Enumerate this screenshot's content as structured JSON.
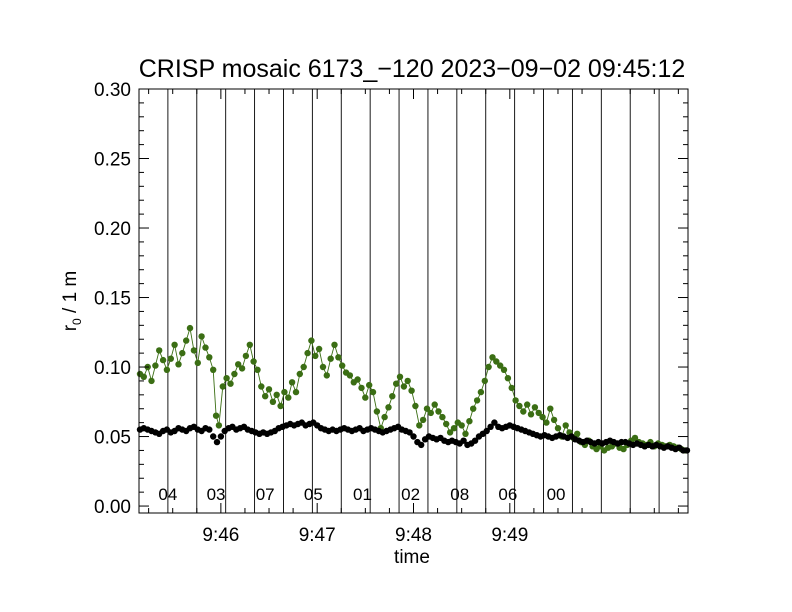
{
  "chart_data": {
    "type": "scatter",
    "title": "CRISP mosaic 6173_−120 2023−09−02 09:45:12",
    "xlabel": "time",
    "ylabel": "r₀ / 1 m",
    "ylabel_main": "r",
    "ylabel_sub": "0",
    "ylabel_rest": " / 1 m",
    "x_unit": "minutes after 09:45:00",
    "xlim": [
      0.15,
      5.85
    ],
    "ylim": [
      -0.005,
      0.3
    ],
    "yticks": [
      0.0,
      0.05,
      0.1,
      0.15,
      0.2,
      0.25,
      0.3
    ],
    "ytick_labels": [
      "0.00",
      "0.05",
      "0.10",
      "0.15",
      "0.20",
      "0.25",
      "0.30"
    ],
    "xticks": [
      1,
      2,
      3,
      4
    ],
    "xtick_labels": [
      "9:46",
      "9:47",
      "9:48",
      "9:49"
    ],
    "segment_boundaries": [
      0.15,
      0.45,
      0.75,
      1.05,
      1.35,
      1.65,
      1.95,
      2.25,
      2.55,
      2.85,
      3.15,
      3.45,
      3.75,
      4.05,
      4.35,
      4.65,
      4.95,
      5.25,
      5.55,
      5.85
    ],
    "segment_labels": [
      {
        "label": "04",
        "x": 0.45
      },
      {
        "label": "03",
        "x": 0.95
      },
      {
        "label": "07",
        "x": 1.46
      },
      {
        "label": "05",
        "x": 1.96
      },
      {
        "label": "01",
        "x": 2.47
      },
      {
        "label": "02",
        "x": 2.97
      },
      {
        "label": "08",
        "x": 3.48
      },
      {
        "label": "06",
        "x": 3.98
      },
      {
        "label": "00",
        "x": 4.48
      }
    ],
    "series": [
      {
        "name": "green",
        "color": "#3b6e14",
        "points": [
          [
            0.16,
            0.095
          ],
          [
            0.2,
            0.093
          ],
          [
            0.24,
            0.1
          ],
          [
            0.28,
            0.09
          ],
          [
            0.32,
            0.101
          ],
          [
            0.36,
            0.112
          ],
          [
            0.4,
            0.105
          ],
          [
            0.44,
            0.098
          ],
          [
            0.48,
            0.106
          ],
          [
            0.52,
            0.116
          ],
          [
            0.56,
            0.102
          ],
          [
            0.6,
            0.11
          ],
          [
            0.64,
            0.119
          ],
          [
            0.68,
            0.128
          ],
          [
            0.72,
            0.112
          ],
          [
            0.76,
            0.103
          ],
          [
            0.8,
            0.122
          ],
          [
            0.84,
            0.114
          ],
          [
            0.88,
            0.107
          ],
          [
            0.92,
            0.098
          ],
          [
            0.95,
            0.065
          ],
          [
            0.98,
            0.058
          ],
          [
            1.02,
            0.086
          ],
          [
            1.06,
            0.092
          ],
          [
            1.1,
            0.088
          ],
          [
            1.14,
            0.095
          ],
          [
            1.18,
            0.102
          ],
          [
            1.22,
            0.099
          ],
          [
            1.26,
            0.108
          ],
          [
            1.3,
            0.116
          ],
          [
            1.34,
            0.104
          ],
          [
            1.38,
            0.098
          ],
          [
            1.42,
            0.086
          ],
          [
            1.46,
            0.079
          ],
          [
            1.5,
            0.084
          ],
          [
            1.54,
            0.075
          ],
          [
            1.58,
            0.08
          ],
          [
            1.62,
            0.072
          ],
          [
            1.66,
            0.082
          ],
          [
            1.7,
            0.078
          ],
          [
            1.74,
            0.089
          ],
          [
            1.78,
            0.082
          ],
          [
            1.82,
            0.095
          ],
          [
            1.86,
            0.1
          ],
          [
            1.9,
            0.11
          ],
          [
            1.94,
            0.119
          ],
          [
            1.98,
            0.108
          ],
          [
            2.02,
            0.113
          ],
          [
            2.06,
            0.1
          ],
          [
            2.1,
            0.094
          ],
          [
            2.14,
            0.106
          ],
          [
            2.18,
            0.116
          ],
          [
            2.22,
            0.107
          ],
          [
            2.26,
            0.101
          ],
          [
            2.3,
            0.096
          ],
          [
            2.34,
            0.094
          ],
          [
            2.38,
            0.089
          ],
          [
            2.42,
            0.091
          ],
          [
            2.46,
            0.085
          ],
          [
            2.5,
            0.078
          ],
          [
            2.54,
            0.087
          ],
          [
            2.58,
            0.082
          ],
          [
            2.62,
            0.068
          ],
          [
            2.66,
            0.056
          ],
          [
            2.7,
            0.064
          ],
          [
            2.74,
            0.071
          ],
          [
            2.78,
            0.079
          ],
          [
            2.82,
            0.088
          ],
          [
            2.86,
            0.093
          ],
          [
            2.9,
            0.086
          ],
          [
            2.94,
            0.09
          ],
          [
            2.98,
            0.083
          ],
          [
            3.02,
            0.072
          ],
          [
            3.06,
            0.058
          ],
          [
            3.1,
            0.062
          ],
          [
            3.14,
            0.07
          ],
          [
            3.18,
            0.067
          ],
          [
            3.22,
            0.073
          ],
          [
            3.26,
            0.068
          ],
          [
            3.3,
            0.064
          ],
          [
            3.34,
            0.059
          ],
          [
            3.38,
            0.053
          ],
          [
            3.42,
            0.056
          ],
          [
            3.46,
            0.06
          ],
          [
            3.5,
            0.058
          ],
          [
            3.54,
            0.052
          ],
          [
            3.58,
            0.061
          ],
          [
            3.62,
            0.07
          ],
          [
            3.66,
            0.076
          ],
          [
            3.7,
            0.082
          ],
          [
            3.74,
            0.09
          ],
          [
            3.78,
            0.1
          ],
          [
            3.82,
            0.107
          ],
          [
            3.86,
            0.104
          ],
          [
            3.9,
            0.101
          ],
          [
            3.94,
            0.098
          ],
          [
            3.98,
            0.092
          ],
          [
            4.02,
            0.085
          ],
          [
            4.06,
            0.076
          ],
          [
            4.1,
            0.072
          ],
          [
            4.14,
            0.068
          ],
          [
            4.18,
            0.073
          ],
          [
            4.22,
            0.066
          ],
          [
            4.26,
            0.071
          ],
          [
            4.3,
            0.067
          ],
          [
            4.34,
            0.064
          ],
          [
            4.38,
            0.06
          ],
          [
            4.42,
            0.07
          ],
          [
            4.46,
            0.062
          ],
          [
            4.5,
            0.056
          ],
          [
            4.54,
            0.05
          ],
          [
            4.58,
            0.058
          ],
          [
            4.62,
            0.053
          ],
          [
            4.66,
            0.049
          ],
          [
            4.7,
            0.052
          ],
          [
            4.74,
            0.046
          ],
          [
            4.78,
            0.044
          ],
          [
            4.82,
            0.047
          ],
          [
            4.86,
            0.043
          ],
          [
            4.9,
            0.041
          ],
          [
            4.94,
            0.043
          ],
          [
            4.98,
            0.04
          ],
          [
            5.02,
            0.042
          ],
          [
            5.06,
            0.043
          ],
          [
            5.1,
            0.045
          ],
          [
            5.14,
            0.042
          ],
          [
            5.18,
            0.041
          ],
          [
            5.22,
            0.044
          ],
          [
            5.26,
            0.047
          ],
          [
            5.3,
            0.049
          ],
          [
            5.34,
            0.046
          ],
          [
            5.38,
            0.045
          ],
          [
            5.42,
            0.044
          ],
          [
            5.46,
            0.046
          ],
          [
            5.5,
            0.043
          ],
          [
            5.54,
            0.045
          ],
          [
            5.58,
            0.044
          ],
          [
            5.62,
            0.043
          ],
          [
            5.66,
            0.044
          ],
          [
            5.7,
            0.043
          ],
          [
            5.74,
            0.042
          ],
          [
            5.78,
            0.041
          ],
          [
            5.82,
            0.04
          ]
        ]
      },
      {
        "name": "black",
        "color": "#000000",
        "points": [
          [
            0.16,
            0.055
          ],
          [
            0.2,
            0.056
          ],
          [
            0.24,
            0.055
          ],
          [
            0.28,
            0.054
          ],
          [
            0.32,
            0.053
          ],
          [
            0.36,
            0.052
          ],
          [
            0.4,
            0.054
          ],
          [
            0.44,
            0.055
          ],
          [
            0.48,
            0.053
          ],
          [
            0.52,
            0.054
          ],
          [
            0.56,
            0.056
          ],
          [
            0.6,
            0.055
          ],
          [
            0.64,
            0.054
          ],
          [
            0.68,
            0.056
          ],
          [
            0.72,
            0.057
          ],
          [
            0.76,
            0.055
          ],
          [
            0.8,
            0.054
          ],
          [
            0.84,
            0.056
          ],
          [
            0.88,
            0.055
          ],
          [
            0.92,
            0.05
          ],
          [
            0.96,
            0.046
          ],
          [
            1.0,
            0.05
          ],
          [
            1.04,
            0.054
          ],
          [
            1.08,
            0.056
          ],
          [
            1.12,
            0.057
          ],
          [
            1.16,
            0.055
          ],
          [
            1.2,
            0.056
          ],
          [
            1.24,
            0.057
          ],
          [
            1.28,
            0.055
          ],
          [
            1.32,
            0.054
          ],
          [
            1.36,
            0.053
          ],
          [
            1.4,
            0.052
          ],
          [
            1.44,
            0.053
          ],
          [
            1.48,
            0.052
          ],
          [
            1.52,
            0.053
          ],
          [
            1.56,
            0.054
          ],
          [
            1.6,
            0.056
          ],
          [
            1.64,
            0.057
          ],
          [
            1.68,
            0.058
          ],
          [
            1.72,
            0.059
          ],
          [
            1.76,
            0.058
          ],
          [
            1.8,
            0.059
          ],
          [
            1.84,
            0.06
          ],
          [
            1.88,
            0.058
          ],
          [
            1.92,
            0.059
          ],
          [
            1.96,
            0.06
          ],
          [
            2.0,
            0.058
          ],
          [
            2.04,
            0.056
          ],
          [
            2.08,
            0.055
          ],
          [
            2.12,
            0.054
          ],
          [
            2.16,
            0.055
          ],
          [
            2.2,
            0.054
          ],
          [
            2.24,
            0.055
          ],
          [
            2.28,
            0.056
          ],
          [
            2.32,
            0.055
          ],
          [
            2.36,
            0.054
          ],
          [
            2.4,
            0.055
          ],
          [
            2.44,
            0.056
          ],
          [
            2.48,
            0.054
          ],
          [
            2.52,
            0.055
          ],
          [
            2.56,
            0.056
          ],
          [
            2.6,
            0.055
          ],
          [
            2.64,
            0.054
          ],
          [
            2.68,
            0.053
          ],
          [
            2.72,
            0.054
          ],
          [
            2.76,
            0.055
          ],
          [
            2.8,
            0.056
          ],
          [
            2.84,
            0.057
          ],
          [
            2.88,
            0.055
          ],
          [
            2.92,
            0.054
          ],
          [
            2.96,
            0.053
          ],
          [
            3.0,
            0.05
          ],
          [
            3.04,
            0.046
          ],
          [
            3.08,
            0.044
          ],
          [
            3.12,
            0.048
          ],
          [
            3.16,
            0.05
          ],
          [
            3.2,
            0.049
          ],
          [
            3.24,
            0.048
          ],
          [
            3.28,
            0.049
          ],
          [
            3.32,
            0.047
          ],
          [
            3.36,
            0.046
          ],
          [
            3.4,
            0.047
          ],
          [
            3.44,
            0.046
          ],
          [
            3.48,
            0.045
          ],
          [
            3.52,
            0.047
          ],
          [
            3.56,
            0.044
          ],
          [
            3.6,
            0.045
          ],
          [
            3.64,
            0.047
          ],
          [
            3.68,
            0.05
          ],
          [
            3.72,
            0.052
          ],
          [
            3.76,
            0.054
          ],
          [
            3.8,
            0.057
          ],
          [
            3.84,
            0.06
          ],
          [
            3.88,
            0.057
          ],
          [
            3.92,
            0.056
          ],
          [
            3.96,
            0.057
          ],
          [
            4.0,
            0.058
          ],
          [
            4.04,
            0.057
          ],
          [
            4.08,
            0.056
          ],
          [
            4.12,
            0.055
          ],
          [
            4.16,
            0.054
          ],
          [
            4.2,
            0.053
          ],
          [
            4.24,
            0.052
          ],
          [
            4.28,
            0.051
          ],
          [
            4.32,
            0.05
          ],
          [
            4.36,
            0.051
          ],
          [
            4.4,
            0.05
          ],
          [
            4.44,
            0.049
          ],
          [
            4.48,
            0.05
          ],
          [
            4.52,
            0.051
          ],
          [
            4.56,
            0.05
          ],
          [
            4.6,
            0.049
          ],
          [
            4.64,
            0.05
          ],
          [
            4.68,
            0.048
          ],
          [
            4.72,
            0.047
          ],
          [
            4.76,
            0.046
          ],
          [
            4.8,
            0.047
          ],
          [
            4.84,
            0.046
          ],
          [
            4.88,
            0.045
          ],
          [
            4.92,
            0.046
          ],
          [
            4.96,
            0.045
          ],
          [
            5.0,
            0.046
          ],
          [
            5.04,
            0.047
          ],
          [
            5.08,
            0.046
          ],
          [
            5.12,
            0.045
          ],
          [
            5.16,
            0.046
          ],
          [
            5.2,
            0.046
          ],
          [
            5.24,
            0.045
          ],
          [
            5.28,
            0.044
          ],
          [
            5.32,
            0.045
          ],
          [
            5.36,
            0.044
          ],
          [
            5.4,
            0.043
          ],
          [
            5.44,
            0.044
          ],
          [
            5.48,
            0.043
          ],
          [
            5.52,
            0.044
          ],
          [
            5.56,
            0.043
          ],
          [
            5.6,
            0.042
          ],
          [
            5.64,
            0.043
          ],
          [
            5.68,
            0.042
          ],
          [
            5.72,
            0.041
          ],
          [
            5.76,
            0.042
          ],
          [
            5.8,
            0.04
          ],
          [
            5.84,
            0.04
          ]
        ]
      }
    ]
  }
}
